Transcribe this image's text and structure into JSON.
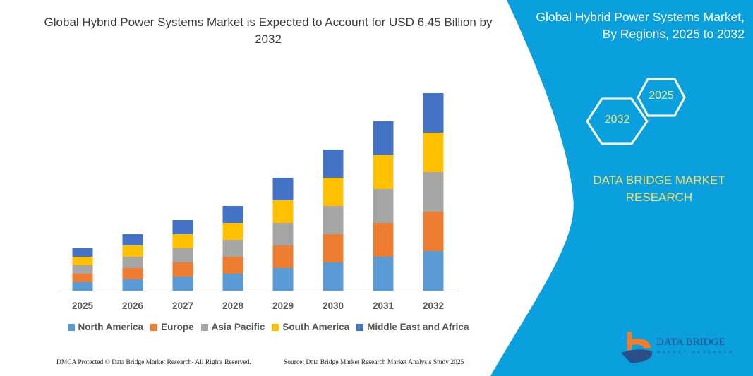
{
  "header": {
    "title": "Global Hybrid Power Systems Market is Expected to Account for USD 6.45 Billion by 2032"
  },
  "side_panel": {
    "title_line1": "Global Hybrid Power Systems Market,",
    "title_line2": "By Regions, 2025 to 2032",
    "hex_start": "2025",
    "hex_end": "2032",
    "brand_line1": "DATA BRIDGE MARKET",
    "brand_line2": "RESEARCH",
    "logo_text": "DATA BRIDGE",
    "logo_subtext": "MARKET RESEARCH",
    "panel_color": "#0aa0dd",
    "hex_text_color": "#f3e88a"
  },
  "footer": {
    "left": "DMCA Protected © Data Bridge Market Research-  All Rights Reserved.",
    "right": "Source: Data Bridge Market Research  Market Analysis Study 2025"
  },
  "chart_data": {
    "type": "bar",
    "stacked": true,
    "title": "Global Hybrid Power Systems Market is Expected to Account for USD 6.45 Billion by 2032",
    "xlabel": "",
    "ylabel": "",
    "y_axis_shown": false,
    "grid": false,
    "legend_position": "bottom",
    "categories": [
      "2025",
      "2026",
      "2027",
      "2028",
      "2029",
      "2030",
      "2031",
      "2032"
    ],
    "ylim": [
      0,
      290
    ],
    "series": [
      {
        "name": "North America",
        "color": "#5b9bd5",
        "values": [
          12,
          16,
          20,
          24,
          32,
          40,
          48,
          56
        ]
      },
      {
        "name": "Europe",
        "color": "#ed7d31",
        "values": [
          12,
          16,
          20,
          24,
          32,
          40,
          48,
          56
        ]
      },
      {
        "name": "Asia Pacific",
        "color": "#a5a5a5",
        "values": [
          12,
          16,
          20,
          24,
          32,
          40,
          48,
          56
        ]
      },
      {
        "name": "South America",
        "color": "#ffc000",
        "values": [
          12,
          16,
          20,
          24,
          32,
          40,
          48,
          56
        ]
      },
      {
        "name": "Middle East and Africa",
        "color": "#4472c4",
        "values": [
          12,
          16,
          20,
          24,
          32,
          40,
          48,
          56
        ]
      }
    ]
  }
}
